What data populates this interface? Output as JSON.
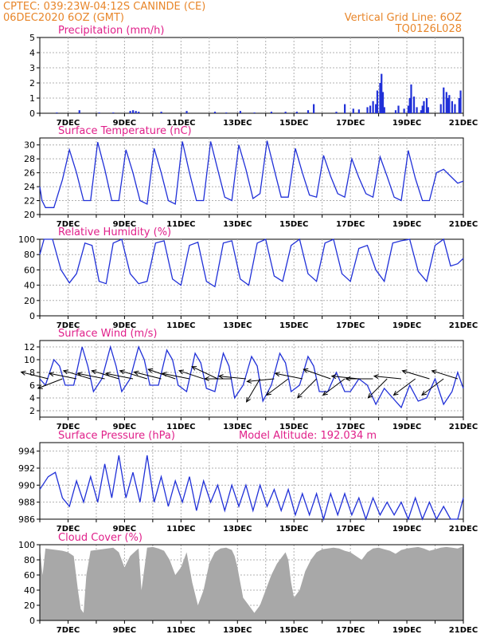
{
  "header": {
    "line1_left": "CPTEC:   039:23W-04:12S   CANINDE (CE)",
    "line2_left": "06DEC2020 6OZ (GMT)",
    "line1_right": "Vertical Grid Line: 6OZ",
    "line2_right": "TQ0126L028"
  },
  "colors": {
    "series": "#2030d8",
    "title": "#e0208a",
    "header": "#e8862a",
    "cloud": "#a8a8a8",
    "grid": "#b0b0b0"
  },
  "chart_data": [
    {
      "type": "bar",
      "title": "Precipitation (mm/h)",
      "ylim": [
        0,
        5
      ],
      "yticks": [
        0,
        1,
        2,
        3,
        4,
        5
      ],
      "xlabels": [
        "7DEC",
        "9DEC",
        "11DEC",
        "13DEC",
        "15DEC",
        "17DEC",
        "19DEC",
        "21DEC"
      ],
      "x_day_range": [
        0,
        15
      ],
      "x": [
        0.6,
        1.4,
        2.1,
        2.6,
        3.2,
        3.3,
        3.4,
        3.5,
        4.3,
        5.2,
        6.2,
        6.6,
        7.1,
        7.6,
        8.2,
        8.7,
        9.1,
        9.5,
        9.7,
        10.5,
        10.8,
        11.1,
        11.3,
        11.6,
        11.7,
        11.8,
        11.9,
        11.95,
        12.05,
        12.1,
        12.15,
        12.2,
        12.6,
        12.7,
        12.9,
        13.05,
        13.1,
        13.15,
        13.25,
        13.35,
        13.5,
        13.55,
        13.6,
        13.7,
        13.75,
        14.2,
        14.3,
        14.4,
        14.45,
        14.5,
        14.6,
        14.7,
        14.85,
        14.9
      ],
      "values": [
        0.05,
        0.2,
        0.05,
        0.05,
        0.15,
        0.2,
        0.15,
        0.1,
        0.1,
        0.15,
        0.1,
        0.05,
        0.15,
        0.05,
        0.1,
        0.1,
        0.1,
        0.2,
        0.6,
        0.1,
        0.6,
        0.3,
        0.25,
        0.4,
        0.5,
        0.8,
        0.6,
        1.5,
        2.0,
        2.6,
        1.4,
        0.4,
        0.2,
        0.5,
        0.3,
        0.5,
        1.0,
        1.9,
        1.1,
        0.4,
        0.2,
        0.5,
        0.8,
        1.0,
        0.4,
        0.6,
        1.7,
        1.4,
        1.0,
        1.2,
        0.8,
        0.6,
        1.0,
        1.5
      ]
    },
    {
      "type": "line",
      "title": "Surface Temperature (nC)",
      "ylim": [
        20,
        31
      ],
      "yticks": [
        20,
        22,
        24,
        26,
        28,
        30
      ],
      "xlabels": [
        "7DEC",
        "9DEC",
        "11DEC",
        "13DEC",
        "15DEC",
        "17DEC",
        "19DEC",
        "21DEC"
      ],
      "x_day_range": [
        0,
        15
      ],
      "series": [
        {
          "x": [
            0,
            0.08,
            0.2,
            0.35,
            0.5,
            0.8,
            1.05,
            1.3,
            1.55,
            1.8,
            2.05,
            2.3,
            2.55,
            2.8,
            3.05,
            3.3,
            3.55,
            3.8,
            4.05,
            4.3,
            4.55,
            4.8,
            5.05,
            5.3,
            5.55,
            5.8,
            6.05,
            6.3,
            6.55,
            6.8,
            7.05,
            7.3,
            7.55,
            7.8,
            8.05,
            8.3,
            8.55,
            8.8,
            9.05,
            9.3,
            9.55,
            9.8,
            10.05,
            10.3,
            10.55,
            10.8,
            11.05,
            11.3,
            11.55,
            11.8,
            12.05,
            12.3,
            12.55,
            12.8,
            13.05,
            13.3,
            13.55,
            13.8,
            14.05,
            14.3,
            14.55,
            14.8,
            15
          ],
          "y": [
            24,
            22,
            21,
            21,
            21,
            25,
            29.3,
            26,
            22,
            22,
            30.4,
            26.5,
            22,
            22,
            29.3,
            26,
            22,
            21.5,
            29.5,
            26,
            22,
            21.5,
            30.5,
            26,
            22,
            22,
            30.5,
            26.5,
            22.5,
            22,
            30,
            26.5,
            22.3,
            23,
            30.6,
            26.5,
            22.5,
            22.5,
            29.5,
            26,
            22.8,
            22.5,
            28.5,
            25.5,
            23,
            22.5,
            28,
            25.3,
            23,
            22.5,
            28.3,
            25.5,
            22.5,
            22,
            29.2,
            25.2,
            22,
            22,
            26,
            26.5,
            25.5,
            24.5,
            24.8
          ]
        }
      ]
    },
    {
      "type": "line",
      "title": "Relative Humidity (%)",
      "ylim": [
        0,
        100
      ],
      "yticks": [
        0,
        20,
        40,
        60,
        80,
        100
      ],
      "xlabels": [
        "7DEC",
        "9DEC",
        "11DEC",
        "13DEC",
        "15DEC",
        "17DEC",
        "19DEC",
        "21DEC"
      ],
      "x_day_range": [
        0,
        15
      ],
      "series": [
        {
          "x": [
            0,
            0.15,
            0.45,
            0.75,
            1.05,
            1.3,
            1.6,
            1.85,
            2.1,
            2.35,
            2.6,
            2.9,
            3.2,
            3.5,
            3.8,
            4.1,
            4.4,
            4.7,
            5.0,
            5.3,
            5.6,
            5.9,
            6.2,
            6.5,
            6.8,
            7.1,
            7.4,
            7.7,
            8.0,
            8.3,
            8.6,
            8.9,
            9.2,
            9.5,
            9.8,
            10.1,
            10.4,
            10.7,
            11.0,
            11.3,
            11.6,
            11.9,
            12.2,
            12.5,
            12.8,
            13.1,
            13.4,
            13.7,
            14.0,
            14.3,
            14.55,
            14.8,
            15
          ],
          "y": [
            80,
            100,
            100,
            60,
            43,
            55,
            95,
            92,
            45,
            42,
            95,
            100,
            55,
            42,
            45,
            95,
            98,
            48,
            40,
            92,
            96,
            45,
            38,
            95,
            98,
            48,
            40,
            95,
            100,
            52,
            45,
            92,
            100,
            55,
            45,
            95,
            100,
            55,
            45,
            88,
            92,
            60,
            45,
            95,
            98,
            100,
            58,
            45,
            92,
            100,
            65,
            68,
            75
          ]
        }
      ]
    },
    {
      "type": "line",
      "title": "Surface Wind (m/s)",
      "ylim": [
        1,
        13
      ],
      "yticks": [
        2,
        4,
        6,
        8,
        10,
        12
      ],
      "xlabels": [
        "7DEC",
        "9DEC",
        "11DEC",
        "13DEC",
        "15DEC",
        "17DEC",
        "19DEC",
        "21DEC"
      ],
      "x_day_range": [
        0,
        15
      ],
      "series": [
        {
          "x": [
            0,
            0.2,
            0.5,
            0.7,
            0.9,
            1.2,
            1.5,
            1.7,
            1.9,
            2.2,
            2.5,
            2.7,
            2.9,
            3.2,
            3.5,
            3.7,
            3.9,
            4.2,
            4.5,
            4.7,
            4.9,
            5.2,
            5.5,
            5.7,
            5.9,
            6.2,
            6.5,
            6.7,
            6.9,
            7.2,
            7.5,
            7.7,
            7.9,
            8.2,
            8.5,
            8.7,
            8.9,
            9.2,
            9.5,
            9.7,
            9.9,
            10.2,
            10.5,
            10.8,
            11.0,
            11.3,
            11.6,
            11.9,
            12.2,
            12.5,
            12.8,
            13.1,
            13.4,
            13.7,
            14.0,
            14.3,
            14.6,
            14.8,
            15
          ],
          "y": [
            7,
            6,
            10,
            9,
            6,
            6,
            12,
            9,
            5,
            7,
            12,
            9,
            5,
            7,
            12,
            10,
            6,
            6,
            11.5,
            10,
            6,
            5,
            11,
            9.5,
            5.5,
            5,
            11,
            9,
            4,
            6,
            10.5,
            9,
            3.5,
            6,
            11,
            9.5,
            5,
            6,
            10.5,
            9,
            5,
            5,
            8,
            5,
            5,
            7,
            6,
            3,
            5.5,
            4,
            2.5,
            6,
            3.5,
            4,
            7,
            3,
            5,
            8,
            5.5
          ]
        }
      ],
      "wind_arrows": [
        {
          "x": 0.3,
          "u": -1,
          "v": 0.25
        },
        {
          "x": 0.8,
          "u": -0.9,
          "v": -0.35
        },
        {
          "x": 1.3,
          "u": -1,
          "v": 0.2
        },
        {
          "x": 1.8,
          "u": -1,
          "v": 0.3
        },
        {
          "x": 2.3,
          "u": -1,
          "v": 0.2
        },
        {
          "x": 2.8,
          "u": -1,
          "v": 0.3
        },
        {
          "x": 3.3,
          "u": -1,
          "v": 0.2
        },
        {
          "x": 3.8,
          "u": -1,
          "v": 0.3
        },
        {
          "x": 4.3,
          "u": -1,
          "v": 0.25
        },
        {
          "x": 4.8,
          "u": -1,
          "v": 0.35
        },
        {
          "x": 5.3,
          "u": -1,
          "v": 0.2
        },
        {
          "x": 5.8,
          "u": -0.9,
          "v": 0.3
        },
        {
          "x": 6.3,
          "u": -0.95,
          "v": 0.45
        },
        {
          "x": 6.8,
          "u": -1,
          "v": 0
        },
        {
          "x": 7.3,
          "u": -1,
          "v": 0.1
        },
        {
          "x": 7.8,
          "u": -0.5,
          "v": -0.85
        },
        {
          "x": 8.3,
          "u": -1,
          "v": -0.1
        },
        {
          "x": 8.8,
          "u": -0.8,
          "v": -0.6
        },
        {
          "x": 9.3,
          "u": -1,
          "v": 0.2
        },
        {
          "x": 9.8,
          "u": -0.7,
          "v": -0.7
        },
        {
          "x": 10.3,
          "u": -1,
          "v": 0.35
        },
        {
          "x": 10.8,
          "u": -0.8,
          "v": -0.6
        },
        {
          "x": 11.3,
          "u": -1,
          "v": 0.1
        },
        {
          "x": 11.8,
          "u": -1,
          "v": 0
        },
        {
          "x": 12.3,
          "u": -0.7,
          "v": -0.7
        },
        {
          "x": 12.8,
          "u": -1,
          "v": 0.1
        },
        {
          "x": 13.3,
          "u": -0.8,
          "v": -0.6
        },
        {
          "x": 13.8,
          "u": -1,
          "v": 0.3
        },
        {
          "x": 14.3,
          "u": -0.8,
          "v": -0.6
        },
        {
          "x": 14.8,
          "u": -0.95,
          "v": 0.3
        }
      ]
    },
    {
      "type": "line",
      "title": "Surface Pressure (hPa)",
      "annotation": "Model Altitude: 192.034 m",
      "ylim": [
        986,
        995
      ],
      "yticks": [
        986,
        988,
        990,
        992,
        994
      ],
      "xlabels": [
        "7DEC",
        "9DEC",
        "11DEC",
        "13DEC",
        "15DEC",
        "17DEC",
        "19DEC",
        "21DEC"
      ],
      "x_day_range": [
        0,
        15
      ],
      "series": [
        {
          "x": [
            0,
            0.3,
            0.55,
            0.8,
            1.05,
            1.3,
            1.55,
            1.8,
            2.05,
            2.3,
            2.55,
            2.8,
            3.05,
            3.3,
            3.55,
            3.8,
            4.05,
            4.3,
            4.55,
            4.8,
            5.05,
            5.3,
            5.55,
            5.8,
            6.05,
            6.3,
            6.55,
            6.8,
            7.05,
            7.3,
            7.55,
            7.8,
            8.05,
            8.3,
            8.55,
            8.8,
            9.05,
            9.3,
            9.55,
            9.8,
            10.05,
            10.3,
            10.55,
            10.8,
            11.05,
            11.3,
            11.55,
            11.8,
            12.05,
            12.3,
            12.55,
            12.8,
            13.05,
            13.3,
            13.55,
            13.8,
            14.05,
            14.3,
            14.55,
            14.8,
            15
          ],
          "y": [
            989.5,
            991,
            991.5,
            988.5,
            987.5,
            990.5,
            988,
            991,
            988,
            992.5,
            988.5,
            993.5,
            988.5,
            991.5,
            988,
            993.5,
            988,
            991,
            987.5,
            990.5,
            988,
            991,
            987,
            990.5,
            988,
            990,
            987,
            990,
            987.5,
            990,
            987,
            990,
            987.5,
            989.5,
            987,
            989.5,
            986.5,
            989,
            986.5,
            989,
            986,
            989,
            986.5,
            989,
            986.5,
            988.5,
            986,
            988.5,
            986.5,
            988,
            986.5,
            988,
            986,
            988.5,
            986,
            988,
            986,
            987.5,
            986,
            986,
            988.5
          ]
        }
      ]
    },
    {
      "type": "area",
      "title": "Cloud Cover (%)",
      "ylim": [
        0,
        100
      ],
      "yticks": [
        0,
        20,
        40,
        60,
        80,
        100
      ],
      "xlabels": [
        "7DEC",
        "9DEC",
        "11DEC",
        "13DEC",
        "15DEC",
        "17DEC",
        "19DEC",
        "21DEC"
      ],
      "x_day_range": [
        0,
        15
      ],
      "series": [
        {
          "x": [
            0,
            0.1,
            0.2,
            0.4,
            0.6,
            0.8,
            1.0,
            1.2,
            1.35,
            1.45,
            1.55,
            1.65,
            1.8,
            2.0,
            2.2,
            2.4,
            2.6,
            2.8,
            3.0,
            3.2,
            3.4,
            3.5,
            3.6,
            3.8,
            4.0,
            4.2,
            4.4,
            4.6,
            4.8,
            5.0,
            5.2,
            5.4,
            5.6,
            5.8,
            6.0,
            6.2,
            6.4,
            6.6,
            6.8,
            6.9,
            7.0,
            7.1,
            7.2,
            7.4,
            7.6,
            7.8,
            8.0,
            8.2,
            8.4,
            8.6,
            8.7,
            8.8,
            8.9,
            9.0,
            9.2,
            9.4,
            9.6,
            9.8,
            10.0,
            10.2,
            10.4,
            10.6,
            10.8,
            11.0,
            11.2,
            11.4,
            11.6,
            11.8,
            12.0,
            12.2,
            12.4,
            12.6,
            12.8,
            13.0,
            13.2,
            13.4,
            13.6,
            13.8,
            14.0,
            14.2,
            14.4,
            14.6,
            14.8,
            15
          ],
          "y": [
            95,
            60,
            95,
            94,
            93,
            92,
            90,
            85,
            40,
            15,
            10,
            60,
            92,
            93,
            94,
            95,
            96,
            90,
            70,
            85,
            92,
            95,
            40,
            96,
            97,
            95,
            92,
            80,
            60,
            70,
            90,
            50,
            20,
            40,
            75,
            90,
            95,
            96,
            93,
            85,
            70,
            50,
            30,
            20,
            10,
            20,
            40,
            60,
            75,
            85,
            90,
            80,
            50,
            30,
            40,
            65,
            80,
            90,
            94,
            95,
            96,
            95,
            92,
            90,
            85,
            80,
            90,
            95,
            96,
            94,
            92,
            88,
            93,
            95,
            96,
            97,
            95,
            92,
            94,
            96,
            97,
            96,
            95,
            98
          ]
        }
      ]
    }
  ]
}
